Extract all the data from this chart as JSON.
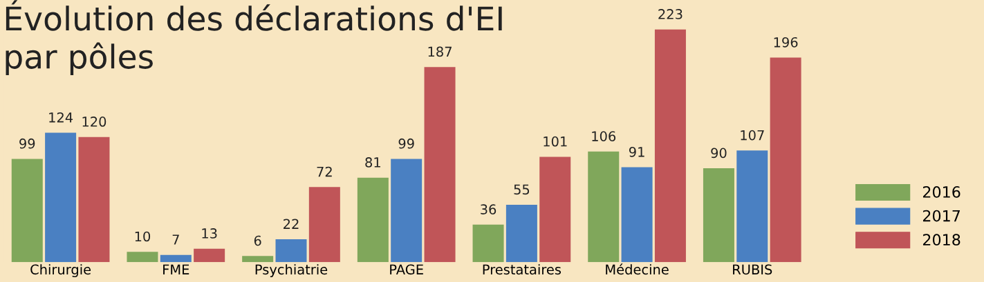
{
  "chart_data": {
    "type": "bar",
    "title": "Évolution des déclarations d'EI\npar pôles",
    "categories": [
      "Chirurgie",
      "FME",
      "Psychiatrie",
      "PAGE",
      "Prestataires",
      "Médecine",
      "RUBIS"
    ],
    "series": [
      {
        "name": "2016",
        "color": "#80a75b",
        "values": [
          99,
          10,
          6,
          81,
          36,
          106,
          90
        ]
      },
      {
        "name": "2017",
        "color": "#4a80c2",
        "values": [
          124,
          7,
          22,
          99,
          55,
          91,
          107
        ]
      },
      {
        "name": "2018",
        "color": "#c05558",
        "values": [
          120,
          13,
          72,
          187,
          101,
          223,
          196
        ]
      }
    ],
    "data_labels": true,
    "legend": "bottom right",
    "grid": false
  }
}
